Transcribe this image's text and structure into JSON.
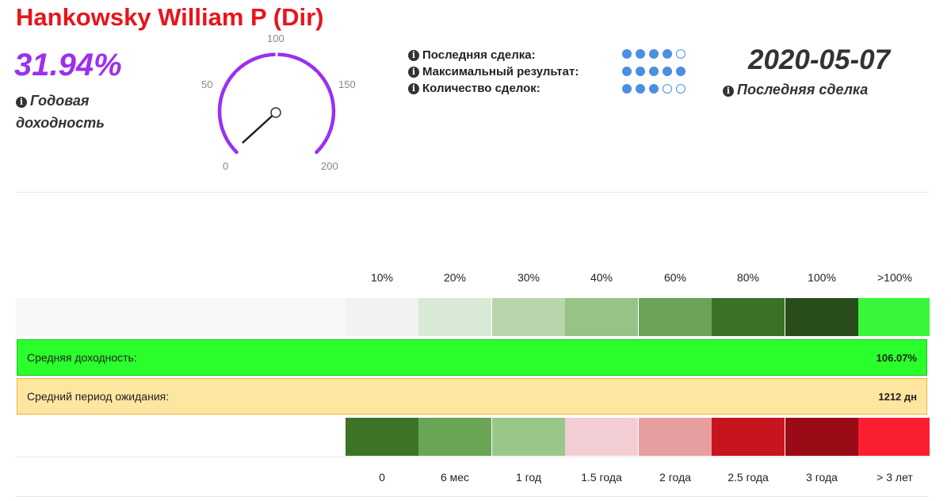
{
  "header": {
    "title": "Hankowsky William P (Dir)",
    "annual_yield": "31.94%",
    "annual_yield_label": "Годовая доходность"
  },
  "gauge": {
    "ticks": [
      "0",
      "50",
      "100",
      "150",
      "200"
    ],
    "min": 0,
    "max": 200,
    "value": 2
  },
  "stats": {
    "rows": [
      {
        "label": "Последняя сделка:",
        "filled": 4,
        "total": 5
      },
      {
        "label": "Максимальный результат:",
        "filled": 5,
        "total": 5
      },
      {
        "label": "Количество сделок:",
        "filled": 3,
        "total": 5
      }
    ]
  },
  "last_trade": {
    "date": "2020-05-07",
    "label": "Последняя сделка"
  },
  "return_scale": {
    "labels": [
      "10%",
      "20%",
      "30%",
      "40%",
      "60%",
      "80%",
      "100%",
      ">100%"
    ],
    "colors": [
      "#f2f2f2",
      "#d8ead5",
      "#b9d5ad",
      "#97c386",
      "#6da25a",
      "#3b7127",
      "#294c1b",
      "#39f53b"
    ]
  },
  "avg_return": {
    "label": "Средняя доходность:",
    "value": "106.07%"
  },
  "avg_wait": {
    "label": "Средний период ожидания:",
    "value": "1212 дн"
  },
  "period_scale": {
    "labels": [
      "0",
      "6 мес",
      "1 год",
      "1.5 года",
      "2 года",
      "2.5 года",
      "3 года",
      "> 3 лет"
    ],
    "colors": [
      "#3c7326",
      "#6aa556",
      "#99c789",
      "#f2cdd3",
      "#e69ea0",
      "#c8141f",
      "#9a0b16",
      "#fb1e31"
    ]
  }
}
